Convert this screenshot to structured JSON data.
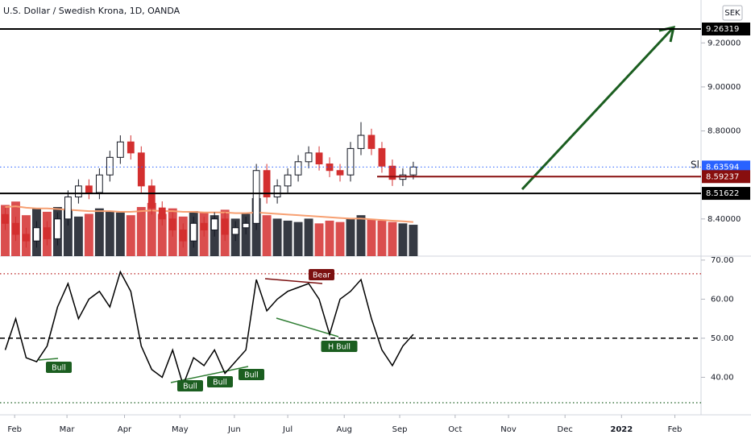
{
  "chart_data": [
    {
      "type": "candlestick",
      "title": "U.S. Dollar / Swedish Krona, 1D, OANDA",
      "currency": "SEK",
      "note": "Sl",
      "open": [
        8.42,
        8.38,
        8.33,
        8.3,
        8.36,
        8.31,
        8.4,
        8.5,
        8.55,
        8.52,
        8.6,
        8.68,
        8.75,
        8.7,
        8.55,
        8.45,
        8.4,
        8.35,
        8.3,
        8.38,
        8.35,
        8.4,
        8.33,
        8.36,
        8.38,
        8.62,
        8.5,
        8.55,
        8.6,
        8.66,
        8.7,
        8.65,
        8.62,
        8.6,
        8.72,
        8.78,
        8.72,
        8.64,
        8.58,
        8.6
      ],
      "high": [
        8.45,
        8.41,
        8.36,
        8.39,
        8.39,
        8.43,
        8.53,
        8.58,
        8.58,
        8.63,
        8.71,
        8.78,
        8.78,
        8.73,
        8.58,
        8.48,
        8.43,
        8.38,
        8.41,
        8.41,
        8.43,
        8.43,
        8.39,
        8.41,
        8.65,
        8.65,
        8.58,
        8.63,
        8.69,
        8.73,
        8.73,
        8.68,
        8.65,
        8.75,
        8.84,
        8.81,
        8.75,
        8.67,
        8.63,
        8.66
      ],
      "low": [
        8.35,
        8.3,
        8.27,
        8.27,
        8.28,
        8.28,
        8.37,
        8.47,
        8.49,
        8.49,
        8.57,
        8.65,
        8.67,
        8.52,
        8.42,
        8.37,
        8.32,
        8.27,
        8.27,
        8.32,
        8.32,
        8.3,
        8.3,
        8.33,
        8.35,
        8.47,
        8.47,
        8.52,
        8.57,
        8.63,
        8.62,
        8.59,
        8.57,
        8.57,
        8.69,
        8.69,
        8.61,
        8.55,
        8.55,
        8.58
      ],
      "close": [
        8.38,
        8.33,
        8.3,
        8.36,
        8.31,
        8.4,
        8.5,
        8.55,
        8.52,
        8.6,
        8.68,
        8.75,
        8.7,
        8.55,
        8.45,
        8.4,
        8.35,
        8.3,
        8.38,
        8.35,
        8.4,
        8.33,
        8.36,
        8.38,
        8.62,
        8.5,
        8.55,
        8.6,
        8.66,
        8.7,
        8.65,
        8.62,
        8.6,
        8.72,
        8.78,
        8.72,
        8.64,
        8.58,
        8.6,
        8.636
      ],
      "volume": [
        75,
        80,
        60,
        70,
        65,
        72,
        68,
        58,
        62,
        70,
        66,
        64,
        60,
        72,
        78,
        62,
        70,
        58,
        66,
        64,
        60,
        68,
        55,
        62,
        85,
        60,
        55,
        52,
        50,
        55,
        48,
        52,
        50,
        56,
        60,
        54,
        52,
        50,
        48,
        46
      ],
      "volume_ma": [
        72,
        73,
        71,
        70,
        70,
        69,
        68,
        67,
        66,
        66,
        66,
        65,
        65,
        66,
        67,
        66,
        66,
        65,
        65,
        64,
        64,
        64,
        63,
        63,
        64,
        63,
        62,
        61,
        60,
        59,
        58,
        57,
        56,
        55,
        55,
        54,
        53,
        52,
        51,
        50
      ],
      "up_color": "#131722",
      "down_color": "#d32f2f",
      "ma_color": "#f7a072",
      "xlim": [
        0,
        67
      ],
      "xticks": [
        {
          "value": 1.4,
          "label": "Feb"
        },
        {
          "value": 6.4,
          "label": "Mar"
        },
        {
          "value": 11.9,
          "label": "Apr"
        },
        {
          "value": 17.2,
          "label": "May"
        },
        {
          "value": 22.4,
          "label": "Jun"
        },
        {
          "value": 27.5,
          "label": "Jul"
        },
        {
          "value": 32.9,
          "label": "Aug"
        },
        {
          "value": 38.2,
          "label": "Sep"
        },
        {
          "value": 43.5,
          "label": "Oct"
        },
        {
          "value": 48.6,
          "label": "Nov"
        },
        {
          "value": 54,
          "label": "Dec"
        },
        {
          "value": 59.4,
          "label": "2022"
        },
        {
          "value": 64.5,
          "label": "Feb"
        }
      ],
      "ylim": [
        8.231,
        9.395
      ],
      "yticks": [
        {
          "value": 9.2,
          "label": "9.20000"
        },
        {
          "value": 9.0,
          "label": "9.00000"
        },
        {
          "value": 8.8,
          "label": "8.80000"
        },
        {
          "value": 8.4,
          "label": "8.40000"
        }
      ],
      "price_lines": [
        {
          "value": 9.26319,
          "color": "#000000",
          "style": "solid"
        },
        {
          "value": 8.63594,
          "color": "#2962ff",
          "style": "dotted"
        },
        {
          "value": 8.59237,
          "color": "#880e0e",
          "style": "solid"
        },
        {
          "value": 8.51622,
          "color": "#000000",
          "style": "solid"
        }
      ]
    },
    {
      "type": "line",
      "values": [
        47,
        55,
        45,
        44,
        48,
        58,
        64,
        55,
        60,
        62,
        58,
        67,
        62,
        48,
        42,
        40,
        47,
        38,
        45,
        43,
        47,
        41,
        44,
        47,
        65,
        57,
        60,
        62,
        63,
        64,
        60,
        51,
        60,
        62,
        65,
        55,
        47,
        43,
        48,
        51
      ],
      "color": "#000000",
      "ylim": [
        30.4,
        70.6
      ],
      "yticks": [
        {
          "value": 70,
          "label": "70.00"
        },
        {
          "value": 60,
          "label": "60.00"
        },
        {
          "value": 50,
          "label": "50.00"
        },
        {
          "value": 40,
          "label": "40.00"
        }
      ],
      "levels": [
        {
          "value": 66.5,
          "color": "#b71c1c",
          "style": "dotted"
        },
        {
          "value": 50,
          "color": "#000000",
          "style": "dashed"
        },
        {
          "value": 33.5,
          "color": "#1b5e20",
          "style": "dotted"
        }
      ],
      "annotations": [
        "Bull",
        "Bull",
        "Bull",
        "Bull",
        "H Bull",
        "Bear"
      ]
    }
  ]
}
